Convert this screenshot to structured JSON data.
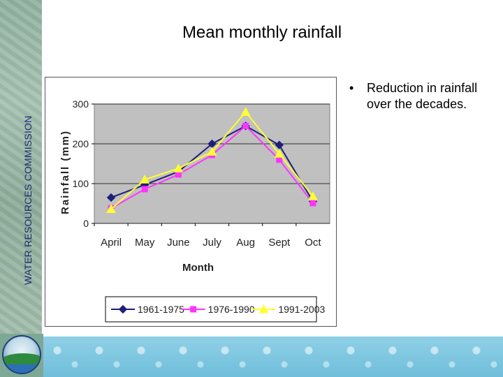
{
  "side_label": "WATER RESOURCES COMMISSION",
  "slide_title": "Mean monthly rainfall",
  "bullets": [
    {
      "symbol": "•",
      "text": "Reduction in rainfall over the decades."
    }
  ],
  "colors": {
    "plot_background": "#c0c0c0",
    "series_1": "#1f1f7a",
    "series_2": "#ff33ff",
    "series_3": "#ffff33"
  },
  "chart_data": {
    "type": "line",
    "title": "",
    "xlabel": "Month",
    "ylabel": "Rainfall (mm)",
    "categories": [
      "April",
      "May",
      "June",
      "July",
      "Aug",
      "Sept",
      "Oct"
    ],
    "ylim": [
      0,
      300
    ],
    "yticks": [
      0,
      100,
      200,
      300
    ],
    "grid": true,
    "legend": "bottom",
    "series": [
      {
        "name": "1961-1975",
        "marker": "diamond",
        "values": [
          65,
          97,
          130,
          200,
          245,
          197,
          55
        ]
      },
      {
        "name": "1976-1990",
        "marker": "square",
        "values": [
          38,
          86,
          123,
          172,
          245,
          160,
          51
        ]
      },
      {
        "name": "1991-2003",
        "marker": "triangle",
        "values": [
          36,
          110,
          138,
          180,
          280,
          175,
          68
        ]
      }
    ]
  }
}
